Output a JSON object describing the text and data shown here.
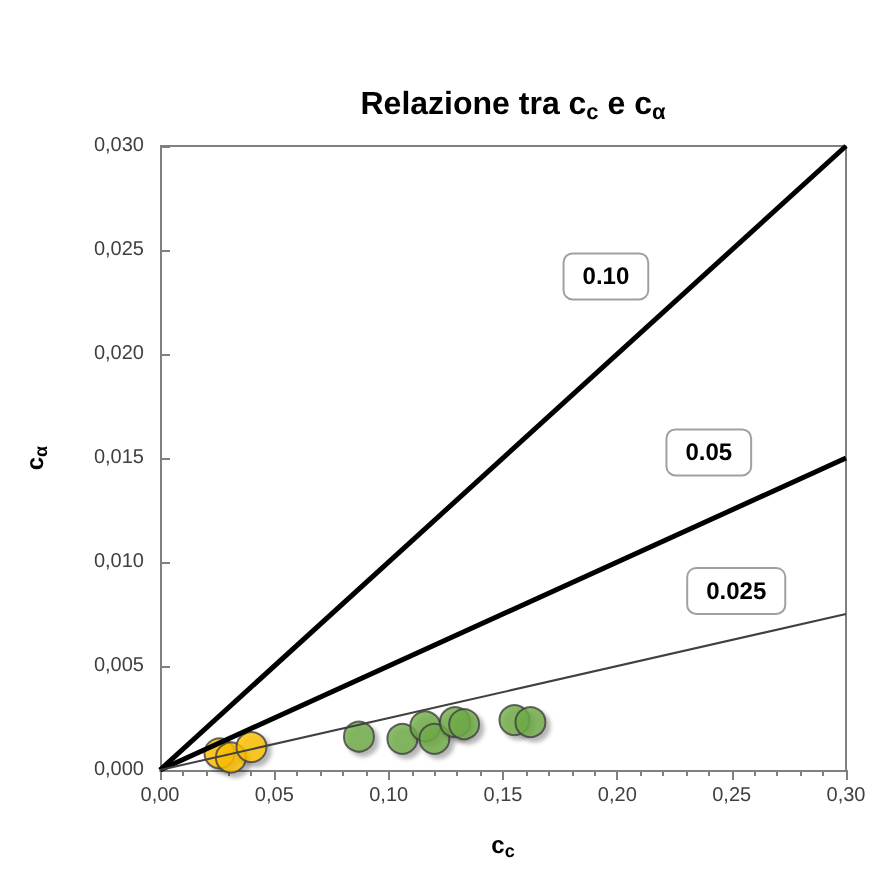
{
  "chart_data": {
    "type": "scatter",
    "title": "Relazione tra c$_{c}$ e c$_{α}$",
    "xlabel": "c$_{c}$",
    "ylabel": "c$_{α}$",
    "xlim": [
      0,
      0.3
    ],
    "ylim": [
      0,
      0.03
    ],
    "xticks": [
      {
        "value": 0,
        "label": "0,00"
      },
      {
        "value": 0.05,
        "label": "0,05"
      },
      {
        "value": 0.1,
        "label": "0,10"
      },
      {
        "value": 0.15,
        "label": "0,15"
      },
      {
        "value": 0.2,
        "label": "0,20"
      },
      {
        "value": 0.25,
        "label": "0,25"
      },
      {
        "value": 0.3,
        "label": "0,30"
      }
    ],
    "yticks": [
      {
        "value": 0,
        "label": "0,000"
      },
      {
        "value": 0.005,
        "label": "0,005"
      },
      {
        "value": 0.01,
        "label": "0,010"
      },
      {
        "value": 0.015,
        "label": "0,015"
      },
      {
        "value": 0.02,
        "label": "0,020"
      },
      {
        "value": 0.025,
        "label": "0,025"
      },
      {
        "value": 0.03,
        "label": "0,030"
      }
    ],
    "grid": false,
    "legend": false,
    "marker": "circle",
    "series": [
      {
        "type": "line",
        "name": "0.10",
        "marker": "none",
        "color": "#000000",
        "x": [
          0,
          0.3
        ],
        "values": [
          0,
          0.03
        ]
      },
      {
        "type": "line",
        "name": "0.05",
        "marker": "none",
        "color": "#000000",
        "x": [
          0,
          0.3
        ],
        "values": [
          0,
          0.015
        ]
      },
      {
        "type": "line",
        "name": "0.025",
        "marker": "none",
        "color": "#404040",
        "x": [
          0,
          0.3
        ],
        "values": [
          0,
          0.0075
        ]
      },
      {
        "color": "#ffc000",
        "x": [
          0.026,
          0.031,
          0.04
        ],
        "values": [
          0.0008,
          0.0006,
          0.0011
        ]
      },
      {
        "color": "#70ad47",
        "x": [
          0.087,
          0.106,
          0.116,
          0.12,
          0.129,
          0.133,
          0.155,
          0.162
        ],
        "values": [
          0.0016,
          0.0015,
          0.0021,
          0.0015,
          0.0023,
          0.0022,
          0.0024,
          0.0023
        ]
      }
    ]
  }
}
